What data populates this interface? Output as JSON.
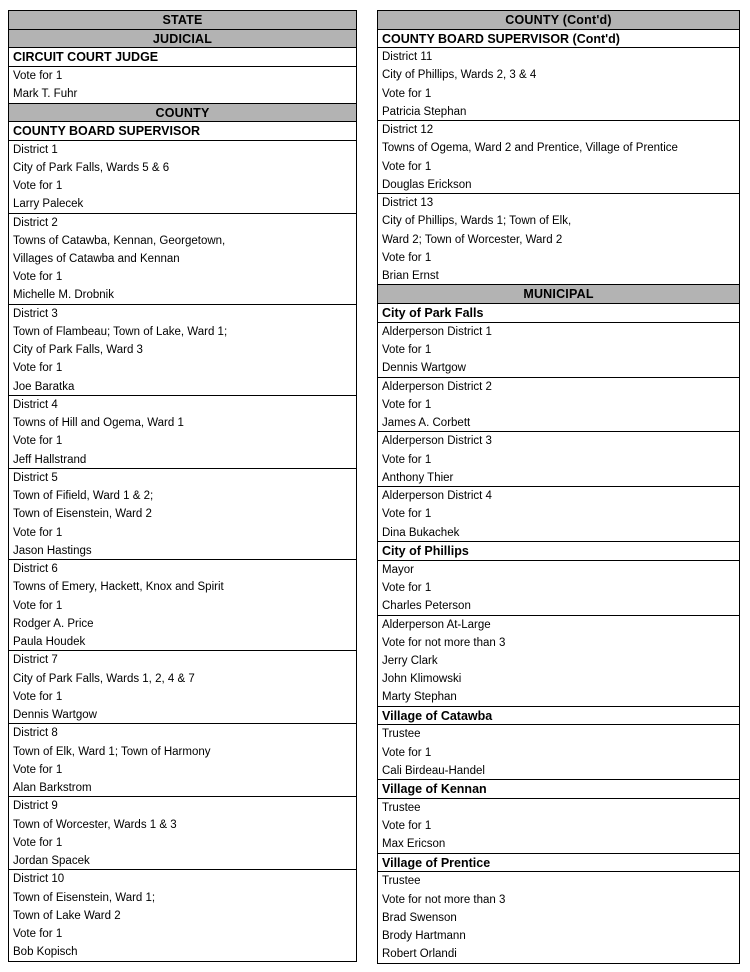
{
  "document_title": "Election contest and candidate listing",
  "colors": {
    "section_header_bg": "#b3b3b3",
    "border": "#000000",
    "text": "#000000",
    "page_bg": "#ffffff"
  },
  "columns": [
    {
      "blocks": [
        {
          "type": "section",
          "text": "STATE"
        },
        {
          "type": "section",
          "text": "JUDICIAL"
        },
        {
          "type": "office",
          "text": "CIRCUIT COURT JUDGE"
        },
        {
          "type": "contest",
          "lines": [
            "Vote for 1",
            "Mark T. Fuhr"
          ]
        },
        {
          "type": "section",
          "text": "COUNTY"
        },
        {
          "type": "office",
          "text": "COUNTY BOARD SUPERVISOR"
        },
        {
          "type": "contest",
          "lines": [
            "District 1",
            "City of Park Falls, Wards 5 & 6",
            "Vote for 1",
            "Larry Palecek"
          ]
        },
        {
          "type": "contest",
          "lines": [
            "District 2",
            "Towns of Catawba, Kennan, Georgetown,",
            "Villages of Catawba and Kennan",
            "Vote for 1",
            "Michelle M. Drobnik"
          ]
        },
        {
          "type": "contest",
          "lines": [
            "District 3",
            "Town of Flambeau; Town of Lake, Ward 1;",
            "City of Park Falls, Ward 3",
            "Vote for 1",
            "Joe Baratka"
          ]
        },
        {
          "type": "contest",
          "lines": [
            "District 4",
            "Towns of Hill and Ogema, Ward 1",
            "Vote for 1",
            "Jeff Hallstrand"
          ]
        },
        {
          "type": "contest",
          "lines": [
            "District 5",
            "Town of Fifield, Ward 1 & 2;",
            "Town of Eisenstein, Ward 2",
            "Vote for 1",
            "Jason Hastings"
          ]
        },
        {
          "type": "contest",
          "lines": [
            "District 6",
            "Towns of Emery, Hackett, Knox and Spirit",
            "Vote for 1",
            "Rodger A. Price",
            "Paula Houdek"
          ]
        },
        {
          "type": "contest",
          "lines": [
            "District 7",
            "City of Park Falls, Wards 1, 2, 4 & 7",
            "Vote for 1",
            "Dennis Wartgow"
          ]
        },
        {
          "type": "contest",
          "lines": [
            "District 8",
            "Town of Elk, Ward 1; Town of Harmony",
            "Vote for 1",
            "Alan Barkstrom"
          ]
        },
        {
          "type": "contest",
          "lines": [
            "District 9",
            "Town of Worcester, Wards 1 & 3",
            "Vote for 1",
            "Jordan Spacek"
          ]
        },
        {
          "type": "contest",
          "lines": [
            "District 10",
            "Town of Eisenstein, Ward 1;",
            "Town of Lake Ward 2",
            "Vote for 1",
            "Bob Kopisch"
          ]
        }
      ]
    },
    {
      "blocks": [
        {
          "type": "section",
          "text": "COUNTY (Cont'd)"
        },
        {
          "type": "office",
          "text": "COUNTY BOARD SUPERVISOR (Cont'd)"
        },
        {
          "type": "contest",
          "lines": [
            "District 11",
            "City of Phillips, Wards 2, 3 & 4",
            "Vote for 1",
            "Patricia Stephan"
          ]
        },
        {
          "type": "contest",
          "lines": [
            "District 12",
            "Towns of Ogema, Ward 2 and Prentice, Village of Prentice",
            "Vote for 1",
            "Douglas Erickson"
          ]
        },
        {
          "type": "contest",
          "lines": [
            "District 13",
            "City of Phillips, Wards 1; Town of Elk,",
            "Ward 2; Town of Worcester, Ward 2",
            "Vote for 1",
            "Brian Ernst"
          ]
        },
        {
          "type": "section",
          "text": "MUNICIPAL"
        },
        {
          "type": "office",
          "text": "City of Park Falls"
        },
        {
          "type": "contest",
          "lines": [
            "Alderperson District 1",
            "Vote for 1",
            "Dennis Wartgow"
          ]
        },
        {
          "type": "contest",
          "lines": [
            "Alderperson District 2",
            "Vote for 1",
            "James A. Corbett"
          ]
        },
        {
          "type": "contest",
          "lines": [
            "Alderperson District 3",
            "Vote for 1",
            "Anthony Thier"
          ]
        },
        {
          "type": "contest",
          "lines": [
            "Alderperson District 4",
            "Vote for 1",
            "Dina Bukachek"
          ]
        },
        {
          "type": "office",
          "text": "City of Phillips"
        },
        {
          "type": "contest",
          "lines": [
            "Mayor",
            "Vote for 1",
            "Charles Peterson"
          ]
        },
        {
          "type": "contest",
          "lines": [
            "Alderperson At-Large",
            "Vote for not more than 3",
            "Jerry Clark",
            "John Klimowski",
            "Marty Stephan"
          ]
        },
        {
          "type": "office",
          "text": "Village of Catawba"
        },
        {
          "type": "contest",
          "lines": [
            "Trustee",
            "Vote for 1",
            "Cali Birdeau-Handel"
          ]
        },
        {
          "type": "office",
          "text": "Village of Kennan"
        },
        {
          "type": "contest",
          "lines": [
            "Trustee",
            "Vote for 1",
            "Max Ericson"
          ]
        },
        {
          "type": "office",
          "text": "Village of Prentice"
        },
        {
          "type": "contest",
          "lines": [
            "Trustee",
            "Vote for not more than 3",
            "Brad Swenson",
            "Brody Hartmann",
            "Robert Orlandi"
          ]
        }
      ]
    }
  ]
}
